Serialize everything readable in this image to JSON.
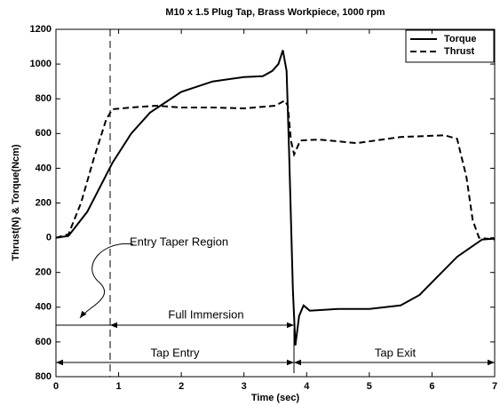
{
  "chart_data": {
    "type": "line",
    "title": "M10 x 1.5 Plug Tap, Brass Workpiece, 1000 rpm",
    "x_label": "Time (sec)",
    "y_label": "Thrust(N) & Torque(Ncm)",
    "xlim": [
      0,
      7
    ],
    "xticks": [
      0,
      1,
      2,
      3,
      4,
      5,
      6,
      7
    ],
    "ylim": [
      -800,
      1200
    ],
    "yticks": [
      1200,
      1000,
      800,
      600,
      400,
      200,
      0,
      {
        "value": -200,
        "label": "200"
      },
      {
        "value": -400,
        "label": "400"
      },
      {
        "value": -600,
        "label": "600"
      },
      {
        "value": -800,
        "label": "800"
      }
    ],
    "grid": false,
    "legend": "upper right",
    "series": [
      {
        "name": "Torque",
        "color": "#000000",
        "linestyle": "solid",
        "x": [
          0,
          0.2,
          0.5,
          0.9,
          1.2,
          1.5,
          2,
          2.5,
          3,
          3.3,
          3.45,
          3.55,
          3.62,
          3.68,
          3.72,
          3.78,
          3.82,
          3.88,
          3.95,
          4.05,
          4.5,
          5,
          5.5,
          5.8,
          6.1,
          6.4,
          6.6,
          6.8,
          7
        ],
        "values": [
          0,
          10,
          150,
          430,
          600,
          720,
          840,
          900,
          925,
          930,
          960,
          1000,
          1080,
          960,
          500,
          -300,
          -620,
          -450,
          -390,
          -420,
          -410,
          -410,
          -390,
          -330,
          -220,
          -110,
          -60,
          -10,
          -5
        ]
      },
      {
        "name": "Thrust",
        "color": "#000000",
        "linestyle": "dashed",
        "x": [
          0,
          0.2,
          0.4,
          0.6,
          0.8,
          0.9,
          1.2,
          1.6,
          2,
          2.5,
          3,
          3.5,
          3.65,
          3.7,
          3.75,
          3.8,
          3.9,
          4.2,
          4.8,
          5.5,
          6.2,
          6.4,
          6.55,
          6.65,
          6.75,
          7
        ],
        "values": [
          0,
          20,
          200,
          450,
          680,
          740,
          750,
          760,
          750,
          750,
          745,
          760,
          790,
          760,
          560,
          480,
          560,
          565,
          545,
          580,
          590,
          570,
          350,
          100,
          0,
          -10
        ]
      }
    ],
    "annotations": [
      "Entry Taper Region",
      "Full Immersion",
      "Tap Entry",
      "Tap Exit"
    ]
  }
}
